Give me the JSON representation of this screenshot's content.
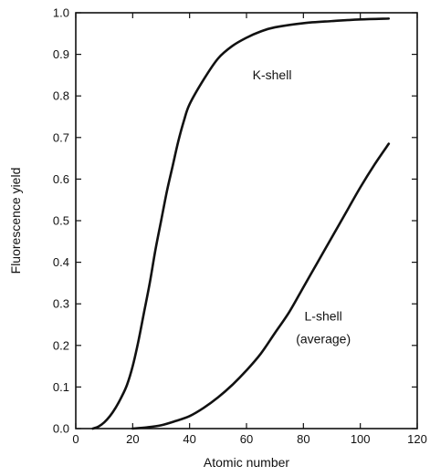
{
  "chart_data": {
    "type": "line",
    "title": "",
    "xlabel": "Atomic number",
    "ylabel": "Fluorescence yield",
    "xlim": [
      0,
      120
    ],
    "ylim": [
      0,
      1.0
    ],
    "xticks": [
      "0",
      "20",
      "40",
      "60",
      "80",
      "100",
      "120"
    ],
    "yticks": [
      "0.0",
      "0.1",
      "0.2",
      "0.3",
      "0.4",
      "0.5",
      "0.6",
      "0.7",
      "0.8",
      "0.9",
      "1.0"
    ],
    "grid": false,
    "series": [
      {
        "name": "",
        "x": [
          6,
          8,
          10,
          12,
          14,
          16,
          18,
          20,
          22,
          24,
          26,
          28,
          30,
          32,
          34,
          36,
          38,
          40,
          45,
          50,
          55,
          60,
          65,
          70,
          80,
          90,
          100,
          110
        ],
        "y": [
          0.0,
          0.005,
          0.015,
          0.03,
          0.05,
          0.075,
          0.105,
          0.15,
          0.21,
          0.28,
          0.35,
          0.43,
          0.5,
          0.57,
          0.63,
          0.69,
          0.74,
          0.78,
          0.84,
          0.89,
          0.92,
          0.94,
          0.955,
          0.965,
          0.975,
          0.98,
          0.984,
          0.986
        ]
      },
      {
        "name": "",
        "x": [
          20,
          25,
          30,
          35,
          40,
          45,
          50,
          55,
          60,
          65,
          70,
          75,
          80,
          85,
          90,
          95,
          100,
          105,
          110
        ],
        "y": [
          0.0,
          0.003,
          0.008,
          0.018,
          0.03,
          0.05,
          0.075,
          0.105,
          0.14,
          0.18,
          0.23,
          0.28,
          0.34,
          0.4,
          0.46,
          0.52,
          0.58,
          0.635,
          0.685
        ]
      }
    ],
    "annotations": [
      {
        "text": "K-shell",
        "x": 69,
        "y": 0.84
      },
      {
        "text": "L-shell",
        "x": 87,
        "y": 0.26
      },
      {
        "text": "(average)",
        "x": 87,
        "y": 0.205
      }
    ]
  }
}
